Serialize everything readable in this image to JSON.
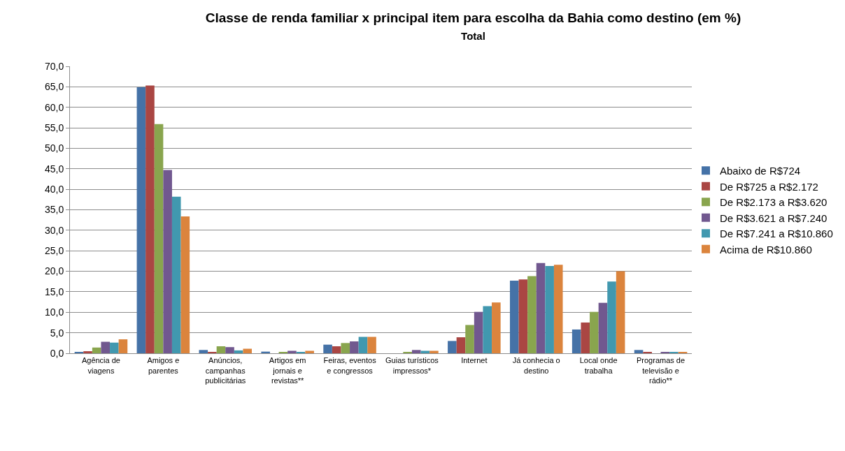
{
  "chart_data": {
    "type": "bar",
    "title": "Classe de renda familiar x principal item para escolha da Bahia como destino (em %)",
    "subtitle": "Total",
    "categories": [
      "Agência de viagens",
      "Amigos e parentes",
      "Anúncios, campanhas publicitárias",
      "Artigos em jornais e revistas**",
      "Feiras, eventos e congressos",
      "Guias turísticos impressos*",
      "Internet",
      "Já conhecia o destino",
      "Local onde trabalha",
      "Programas de televisão e rádio**"
    ],
    "series": [
      {
        "name": "Abaixo de R$724",
        "color": "#4572a7",
        "values": [
          0.3,
          64.9,
          0.8,
          0.4,
          2.1,
          0.0,
          3.0,
          17.7,
          5.8,
          0.8
        ]
      },
      {
        "name": "De R$725 a R$2.172",
        "color": "#aa4643",
        "values": [
          0.5,
          65.3,
          0.2,
          0.0,
          1.7,
          0.0,
          3.9,
          18.0,
          7.5,
          0.3
        ]
      },
      {
        "name": "De R$2.173 a R$3.620",
        "color": "#89a54e",
        "values": [
          1.4,
          55.9,
          1.7,
          0.2,
          2.5,
          0.2,
          6.9,
          18.8,
          10.1,
          0.0
        ]
      },
      {
        "name": "De R$3.621 a R$7.240",
        "color": "#71588f",
        "values": [
          2.8,
          44.7,
          1.5,
          0.6,
          2.9,
          0.8,
          10.1,
          22.0,
          12.3,
          0.3
        ]
      },
      {
        "name": "De R$7.241 a R$10.860",
        "color": "#4198af",
        "values": [
          2.6,
          38.2,
          0.7,
          0.3,
          4.0,
          0.6,
          11.5,
          21.3,
          17.5,
          0.2
        ]
      },
      {
        "name": "Acima de R$10.860",
        "color": "#db843d",
        "values": [
          3.4,
          33.4,
          1.1,
          0.6,
          4.0,
          0.6,
          12.4,
          21.6,
          20.0,
          0.2
        ]
      }
    ],
    "ylim": [
      0,
      70
    ],
    "yticks": [
      {
        "value": 0,
        "label": "0,0"
      },
      {
        "value": 5,
        "label": "5,0"
      },
      {
        "value": 10,
        "label": "10,0"
      },
      {
        "value": 15,
        "label": "15,0"
      },
      {
        "value": 20,
        "label": "20,0"
      },
      {
        "value": 25,
        "label": "25,0"
      },
      {
        "value": 30,
        "label": "30,0"
      },
      {
        "value": 35,
        "label": "35,0"
      },
      {
        "value": 40,
        "label": "40,0"
      },
      {
        "value": 45,
        "label": "45,0"
      },
      {
        "value": 50,
        "label": "50,0"
      },
      {
        "value": 55,
        "label": "55,0"
      },
      {
        "value": 60,
        "label": "60,0"
      },
      {
        "value": 65,
        "label": "65,0"
      },
      {
        "value": 70,
        "label": "70,0"
      }
    ],
    "grid": "y",
    "legend": "right"
  }
}
